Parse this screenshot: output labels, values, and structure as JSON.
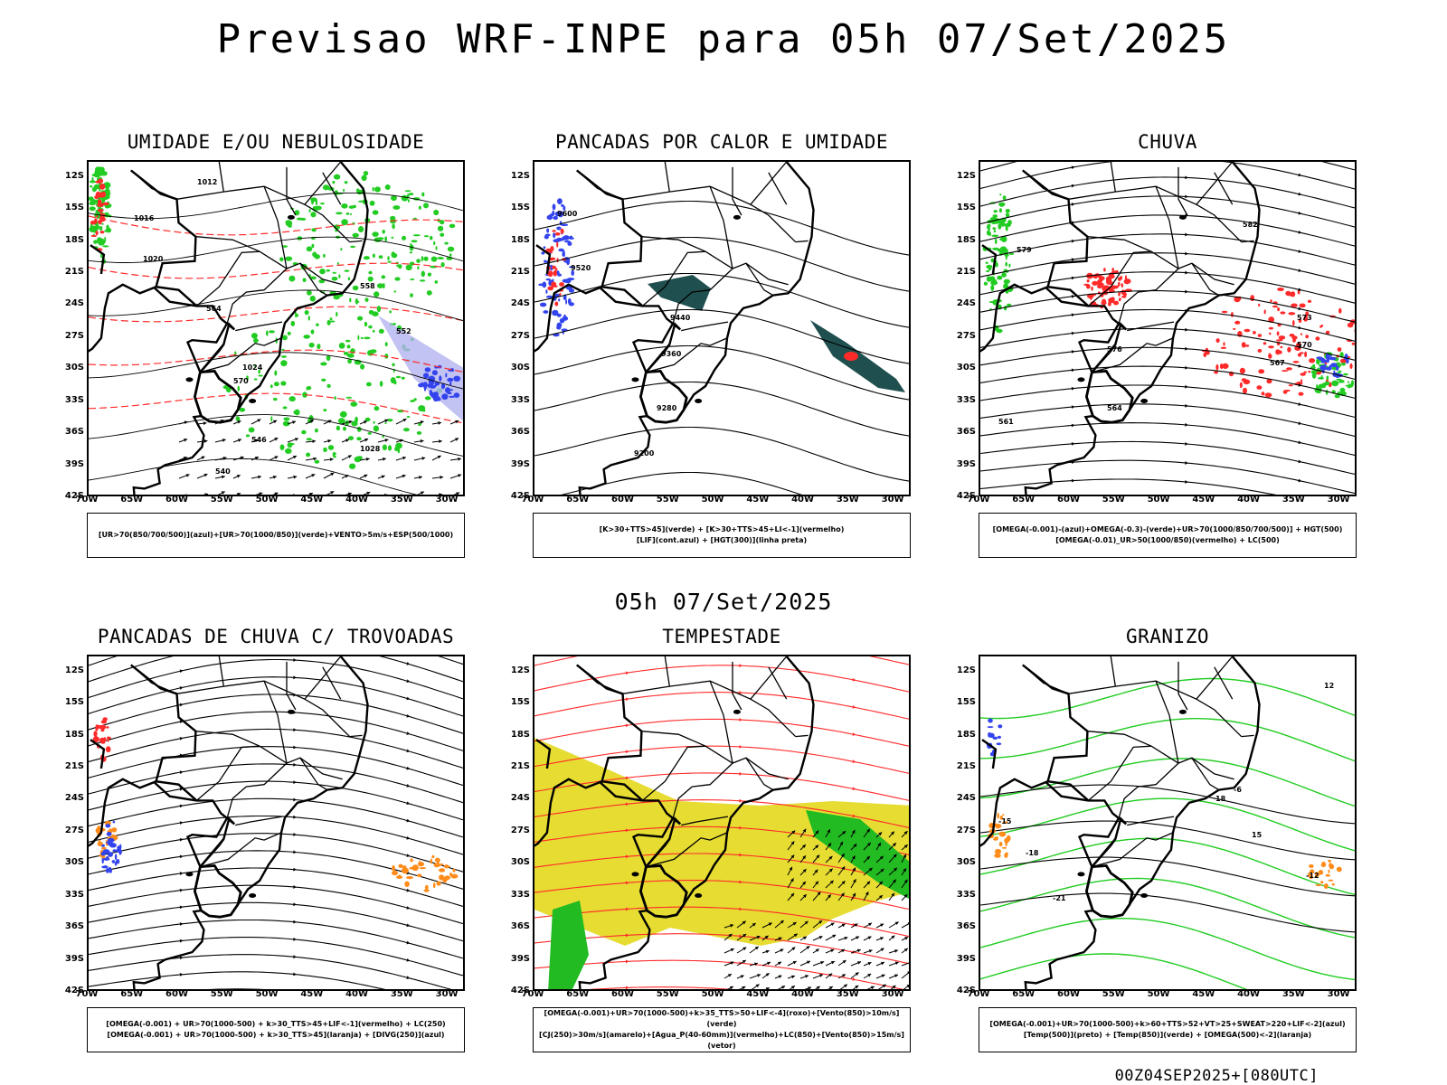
{
  "title": "Previsao WRF-INPE  para 05h 07/Set/2025",
  "mid_title": "05h 07/Set/2025",
  "footer": "00Z04SEP2025+[080UTC]",
  "colors": {
    "black": "#000000",
    "red": "#ff2a2a",
    "green": "#22cc22",
    "blue": "#3344ee",
    "yellow": "#e6dc32",
    "orange": "#ff8c1a",
    "teal": "#1f4f4f",
    "lavender": "#b3b3f0"
  },
  "axes": {
    "lat_labels": [
      "12S",
      "15S",
      "18S",
      "21S",
      "24S",
      "27S",
      "30S",
      "33S",
      "36S",
      "39S",
      "42S"
    ],
    "lon_labels": [
      "70W",
      "65W",
      "60W",
      "55W",
      "50W",
      "45W",
      "40W",
      "35W",
      "30W"
    ]
  },
  "chart_data": [
    {
      "type": "map",
      "title": "UMIDADE E/OU NEBULOSIDADE",
      "legend": [
        "[UR>70(850/700/500)](azul)+[UR>70(1000/850)](verde)+VENTO>5m/s+ESP(500/1000)"
      ],
      "contour_labels": [
        "1012",
        "1016",
        "1020",
        "1024",
        "1028",
        "570",
        "564",
        "558",
        "552",
        "546",
        "540"
      ]
    },
    {
      "type": "map",
      "title": "PANCADAS POR CALOR E UMIDADE",
      "legend": [
        "[K>30+TTS>45](verde) + [K>30+TTS>45+LI<-1](vermelho)",
        "[LIF](cont.azul) + [HGT(300)](linha preta)"
      ],
      "contour_labels": [
        "9600",
        "9520",
        "9440",
        "9360",
        "9280",
        "9200"
      ]
    },
    {
      "type": "map",
      "title": "CHUVA",
      "legend": [
        "[OMEGA(-0.001)-(azul)+OMEGA(-0.3)-(verde)+UR>70(1000/850/700/500)] + HGT(500)",
        "[OMEGA(-0.01)_UR>50(1000/850)(vermelho) + LC(500)"
      ],
      "contour_labels": [
        "582",
        "579",
        "576",
        "573",
        "570",
        "567",
        "564",
        "561"
      ]
    },
    {
      "type": "map",
      "title": "PANCADAS DE CHUVA C/ TROVOADAS",
      "legend": [
        "[OMEGA(-0.001) + UR>70(1000-500) + k>30_TTS>45+LIF<-1](vermelho) + LC(250)",
        "[OMEGA(-0.001) + UR>70(1000-500) + k>30_TTS>45](laranja) + [DIVG(250)](azul)"
      ],
      "contour_labels": []
    },
    {
      "type": "map",
      "title": "TEMPESTADE",
      "legend": [
        "[OMEGA(-0.001)+UR>70(1000-500)+k>35_TTS>50+LIF<-4](roxo)+[Vento(850)>10m/s](verde)",
        "[CJ(250)>30m/s](amarelo)+[Agua_P(40-60mm)](vermelho)+LC(850)+[Vento(850)>15m/s](vetor)"
      ],
      "contour_labels": []
    },
    {
      "type": "map",
      "title": "GRANIZO",
      "legend": [
        "[OMEGA(-0.001)+UR>70(1000-500)+k>60+TTS>52+VT>25+SWEAT>220+LIF<-2](azul)",
        "[Temp(500)](preto) + [Temp(850)](verde) + [OMEGA(500)<-2](laranja)"
      ],
      "contour_labels": [
        "-12",
        "-15",
        "-18",
        "-21",
        "12",
        "15",
        "18",
        "-6"
      ]
    }
  ]
}
